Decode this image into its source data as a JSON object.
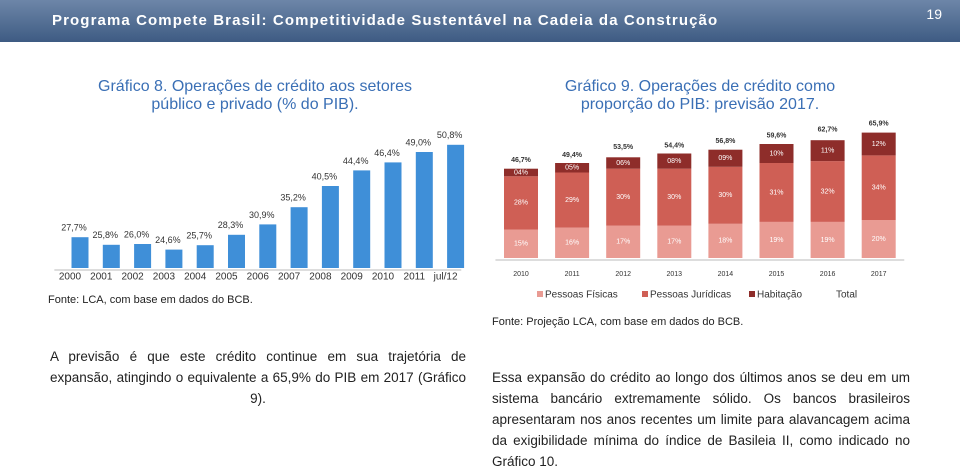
{
  "header": {
    "title": "Programa Compete Brasil: Competitividade Sustentável na Cadeia da Construção",
    "page": "19"
  },
  "chart_data": [
    {
      "type": "bar",
      "title": [
        "Gráfico 8. Operações de crédito aos setores",
        "público e privado (% do PIB)."
      ],
      "categories": [
        "2000",
        "2001",
        "2002",
        "2003",
        "2004",
        "2005",
        "2006",
        "2007",
        "2008",
        "2009",
        "2010",
        "2011",
        "jul/12"
      ],
      "values": [
        27.7,
        25.8,
        26.0,
        24.6,
        25.7,
        28.3,
        30.9,
        35.2,
        40.5,
        44.4,
        46.4,
        49.0,
        50.8
      ],
      "value_labels": [
        "27,7%",
        "25,8%",
        "26,0%",
        "24,6%",
        "25,7%",
        "28,3%",
        "30,9%",
        "35,2%",
        "40,5%",
        "44,4%",
        "46,4%",
        "49,0%",
        "50,8%"
      ],
      "color": "#3f8fd8",
      "ylim": [
        20,
        52
      ],
      "source": "Fonte: LCA, com base em dados do BCB."
    },
    {
      "type": "bar",
      "stacked": true,
      "title": [
        "Gráfico 9. Operações de crédito como",
        "proporção do PIB: previsão 2017."
      ],
      "categories": [
        "2010",
        "2011",
        "2012",
        "2013",
        "2014",
        "2015",
        "2016",
        "2017"
      ],
      "series": [
        {
          "name": "Pessoas Físicas",
          "color": "#e99b93",
          "values": [
            15,
            16,
            17,
            17,
            18,
            19,
            19,
            20
          ],
          "value_labels": [
            "15%",
            "16%",
            "17%",
            "17%",
            "18%",
            "19%",
            "19%",
            "20%"
          ]
        },
        {
          "name": "Pessoas Jurídicas",
          "color": "#cf5f55",
          "values": [
            28,
            29,
            30,
            30,
            30,
            31,
            32,
            34
          ],
          "value_labels": [
            "28%",
            "29%",
            "30%",
            "30%",
            "30%",
            "31%",
            "32%",
            "34%"
          ]
        },
        {
          "name": "Habitação",
          "color": "#8e2d2a",
          "values": [
            4,
            5,
            6,
            8,
            9,
            10,
            11,
            12
          ],
          "value_labels": [
            "04%",
            "05%",
            "06%",
            "08%",
            "09%",
            "10%",
            "11%",
            "12%"
          ]
        },
        {
          "name": "Total",
          "values": [
            46.7,
            49.4,
            53.5,
            54.4,
            56.8,
            59.6,
            62.7,
            65.9
          ],
          "value_labels": [
            "46,7%",
            "49,4%",
            "53,5%",
            "54,4%",
            "56,8%",
            "59,6%",
            "62,7%",
            "65,9%"
          ]
        }
      ],
      "ylim": [
        0,
        70
      ],
      "source": "Fonte: Projeção LCA, com base em dados do BCB."
    }
  ],
  "paragraphs": [
    "A previsão é que este crédito continue em sua trajetória de expansão, atingindo o equivalente a 65,9% do PIB em 2017 (Gráfico 9).",
    "Essa expansão do crédito ao longo dos últimos anos se deu em um sistema bancário extremamente sólido. Os bancos brasileiros apresentaram nos anos recentes um limite para alavancagem acima da exigibilidade mínima do índice de Basileia II, como indicado no Gráfico 10."
  ]
}
